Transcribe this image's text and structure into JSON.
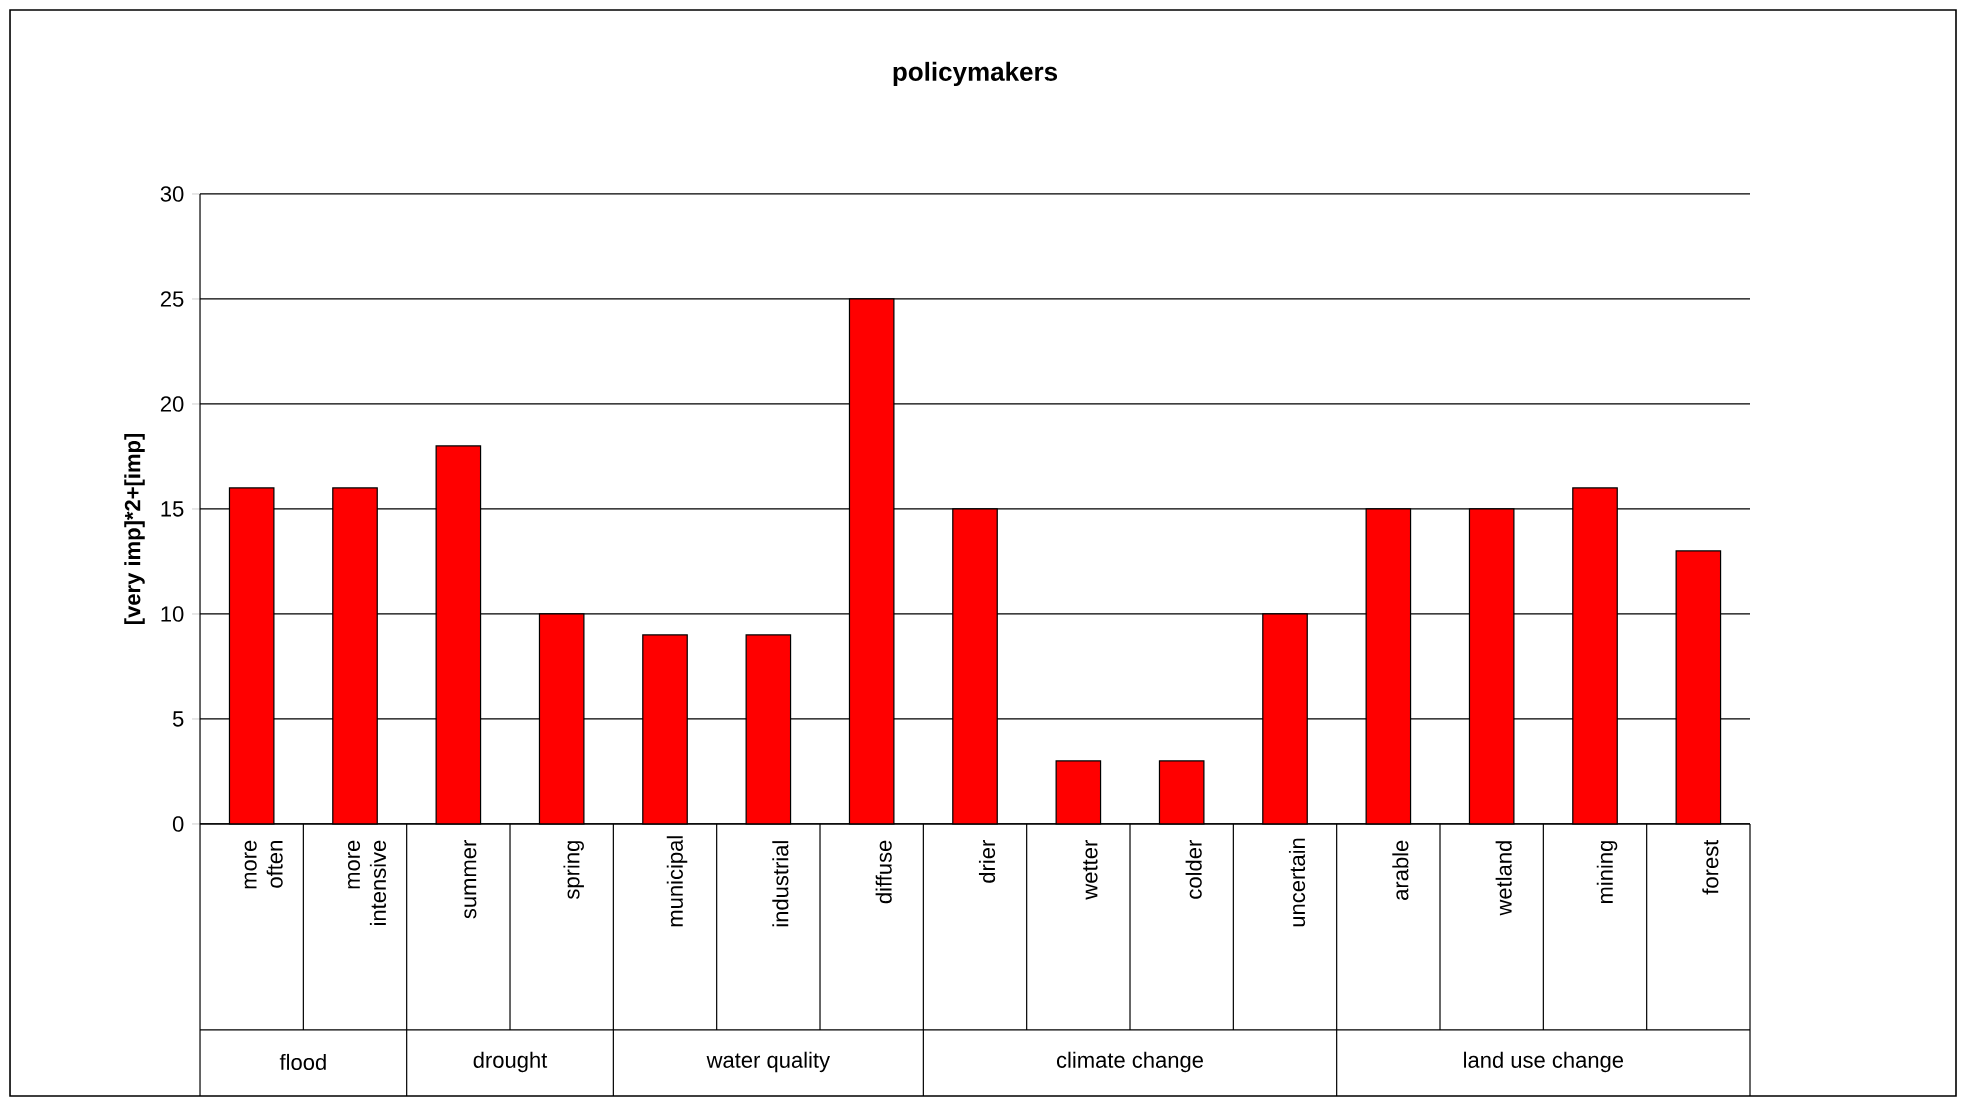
{
  "chart_data": {
    "type": "bar",
    "title": "policymakers",
    "ylabel": "[very imp]*2+[imp]",
    "categories": [
      "more often",
      "more intensive",
      "summer",
      "spring",
      "municipal",
      "industrial",
      "diffuse",
      "drier",
      "wetter",
      "colder",
      "uncertain",
      "arable",
      "wetland",
      "mining",
      "forest"
    ],
    "values": [
      16,
      16,
      18,
      10,
      9,
      9,
      25,
      15,
      3,
      3,
      10,
      15,
      15,
      16,
      13
    ],
    "color": "#ff0000",
    "ylim": [
      0,
      30
    ],
    "yticks": [
      0,
      5,
      10,
      15,
      20,
      25,
      30
    ],
    "grid": "y",
    "annotations": [
      "flood",
      "drought",
      "water quality",
      "climate change",
      "land use change"
    ]
  }
}
